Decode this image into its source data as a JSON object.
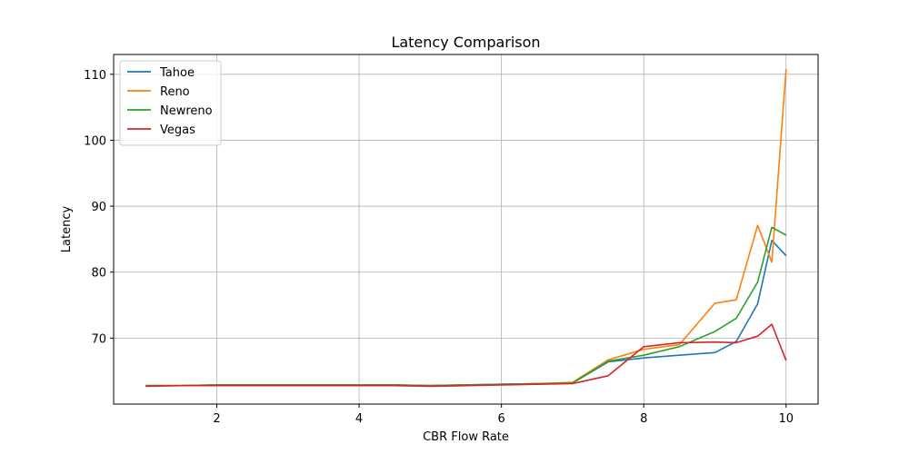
{
  "chart_data": {
    "type": "line",
    "title": "Latency Comparison",
    "xlabel": "CBR Flow Rate",
    "ylabel": "Latency",
    "xlim": [
      0.55,
      10.45
    ],
    "ylim": [
      60.0,
      113.0
    ],
    "xticks": [
      2,
      4,
      6,
      8,
      10
    ],
    "yticks": [
      70,
      80,
      90,
      100,
      110
    ],
    "grid": true,
    "legend_position": "top-left",
    "colors": [
      "#1f77b4",
      "#ff7f0e",
      "#2ca02c",
      "#d62728"
    ],
    "series": [
      {
        "name": "Tahoe",
        "x": [
          1,
          1.5,
          2,
          2.5,
          3,
          3.5,
          4,
          4.5,
          5,
          5.5,
          6,
          6.5,
          7,
          7.5,
          8,
          8.5,
          9,
          9.3,
          9.6,
          9.8,
          10
        ],
        "y": [
          62.8,
          62.8,
          62.9,
          62.9,
          62.9,
          62.9,
          62.9,
          62.9,
          62.8,
          62.9,
          63.0,
          63.1,
          63.2,
          66.4,
          67.0,
          67.4,
          67.8,
          69.5,
          75.2,
          84.8,
          82.5
        ]
      },
      {
        "name": "Reno",
        "x": [
          1,
          1.5,
          2,
          2.5,
          3,
          3.5,
          4,
          4.5,
          5,
          5.5,
          6,
          6.5,
          7,
          7.5,
          8,
          8.5,
          9,
          9.3,
          9.6,
          9.8,
          10
        ],
        "y": [
          62.8,
          62.8,
          62.9,
          62.9,
          62.9,
          62.9,
          62.9,
          62.9,
          62.8,
          62.9,
          63.0,
          63.1,
          63.3,
          66.7,
          68.3,
          69.0,
          75.3,
          75.8,
          87.1,
          81.5,
          110.8
        ]
      },
      {
        "name": "Newreno",
        "x": [
          1,
          1.5,
          2,
          2.5,
          3,
          3.5,
          4,
          4.5,
          5,
          5.5,
          6,
          6.5,
          7,
          7.5,
          8,
          8.5,
          9,
          9.3,
          9.6,
          9.8,
          10
        ],
        "y": [
          62.8,
          62.8,
          62.9,
          62.9,
          62.9,
          62.9,
          62.9,
          62.9,
          62.8,
          62.9,
          63.0,
          63.1,
          63.2,
          66.5,
          67.4,
          68.7,
          71.0,
          73.0,
          78.5,
          86.8,
          85.6
        ]
      },
      {
        "name": "Vegas",
        "x": [
          1,
          1.5,
          2,
          2.5,
          3,
          3.5,
          4,
          4.5,
          5,
          5.5,
          6,
          6.5,
          7,
          7.5,
          8,
          8.5,
          9,
          9.3,
          9.6,
          9.8,
          10
        ],
        "y": [
          62.7,
          62.8,
          62.8,
          62.8,
          62.8,
          62.8,
          62.8,
          62.8,
          62.7,
          62.8,
          62.9,
          63.0,
          63.1,
          64.3,
          68.7,
          69.3,
          69.4,
          69.3,
          70.3,
          72.1,
          66.6
        ]
      }
    ]
  }
}
